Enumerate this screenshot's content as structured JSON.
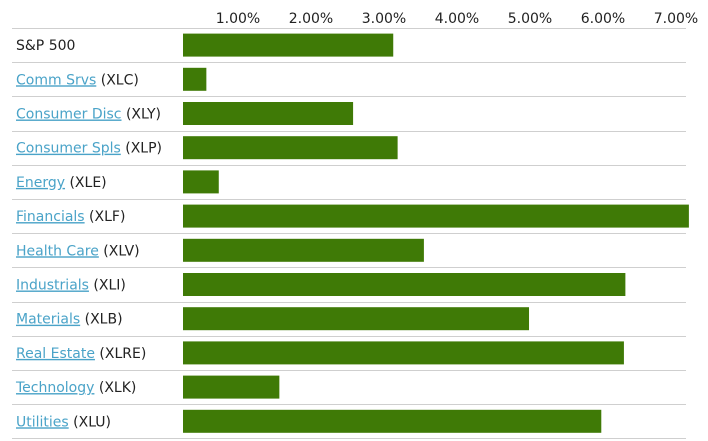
{
  "chart_data": {
    "type": "bar",
    "orientation": "horizontal",
    "x_ticks": [
      "1.00%",
      "2.00%",
      "3.00%",
      "4.00%",
      "5.00%",
      "6.00%",
      "7.00%"
    ],
    "xlim": [
      0,
      7
    ],
    "grid": false,
    "bar_color": "#3f7a06",
    "link_color": "#4aa3c8",
    "categories": [
      {
        "name": "S&P 500",
        "ticker": "",
        "link": false,
        "value": 2.88
      },
      {
        "name": "Comm Srvs",
        "ticker": "(XLC)",
        "link": true,
        "value": 0.32
      },
      {
        "name": "Consumer Disc",
        "ticker": "(XLY)",
        "link": true,
        "value": 2.33
      },
      {
        "name": "Consumer Spls",
        "ticker": "(XLP)",
        "link": true,
        "value": 2.94
      },
      {
        "name": "Energy",
        "ticker": "(XLE)",
        "link": true,
        "value": 0.49
      },
      {
        "name": "Financials",
        "ticker": "(XLF)",
        "link": true,
        "value": 6.93
      },
      {
        "name": "Health Care",
        "ticker": "(XLV)",
        "link": true,
        "value": 3.3
      },
      {
        "name": "Industrials",
        "ticker": "(XLI)",
        "link": true,
        "value": 6.06
      },
      {
        "name": "Materials",
        "ticker": "(XLB)",
        "link": true,
        "value": 4.74
      },
      {
        "name": "Real Estate",
        "ticker": "(XLRE)",
        "link": true,
        "value": 6.04
      },
      {
        "name": "Technology",
        "ticker": "(XLK)",
        "link": true,
        "value": 1.32
      },
      {
        "name": "Utilities",
        "ticker": "(XLU)",
        "link": true,
        "value": 5.73
      }
    ]
  }
}
